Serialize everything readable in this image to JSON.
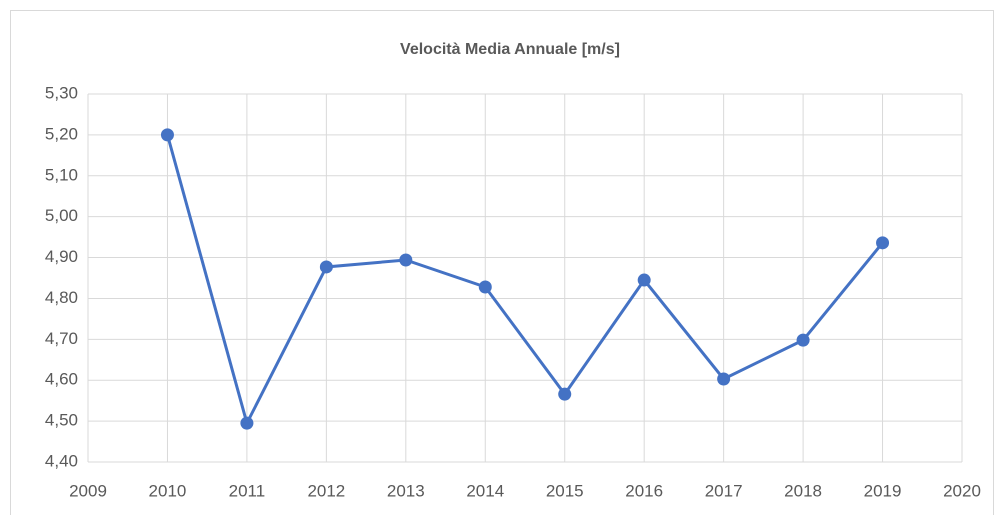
{
  "chart_data": {
    "type": "line",
    "title": "Velocità Media Annuale [m/s]",
    "x": [
      2010,
      2011,
      2012,
      2013,
      2014,
      2015,
      2016,
      2017,
      2018,
      2019
    ],
    "series": [
      {
        "name": "Velocità Media Annuale",
        "color": "#4472c4",
        "values": [
          5.2,
          4.495,
          4.877,
          4.894,
          4.828,
          4.566,
          4.845,
          4.603,
          4.698,
          4.936
        ]
      }
    ],
    "xlim": [
      2009,
      2020
    ],
    "xticks": [
      2009,
      2010,
      2011,
      2012,
      2013,
      2014,
      2015,
      2016,
      2017,
      2018,
      2019,
      2020
    ],
    "ylim": [
      4.4,
      5.3
    ],
    "yticks": [
      {
        "value": 4.4,
        "label": "4,40"
      },
      {
        "value": 4.5,
        "label": "4,50"
      },
      {
        "value": 4.6,
        "label": "4,60"
      },
      {
        "value": 4.7,
        "label": "4,70"
      },
      {
        "value": 4.8,
        "label": "4,80"
      },
      {
        "value": 4.9,
        "label": "4,90"
      },
      {
        "value": 5.0,
        "label": "5,00"
      },
      {
        "value": 5.1,
        "label": "5,10"
      },
      {
        "value": 5.2,
        "label": "5,20"
      },
      {
        "value": 5.3,
        "label": "5,30"
      }
    ],
    "grid": true
  }
}
